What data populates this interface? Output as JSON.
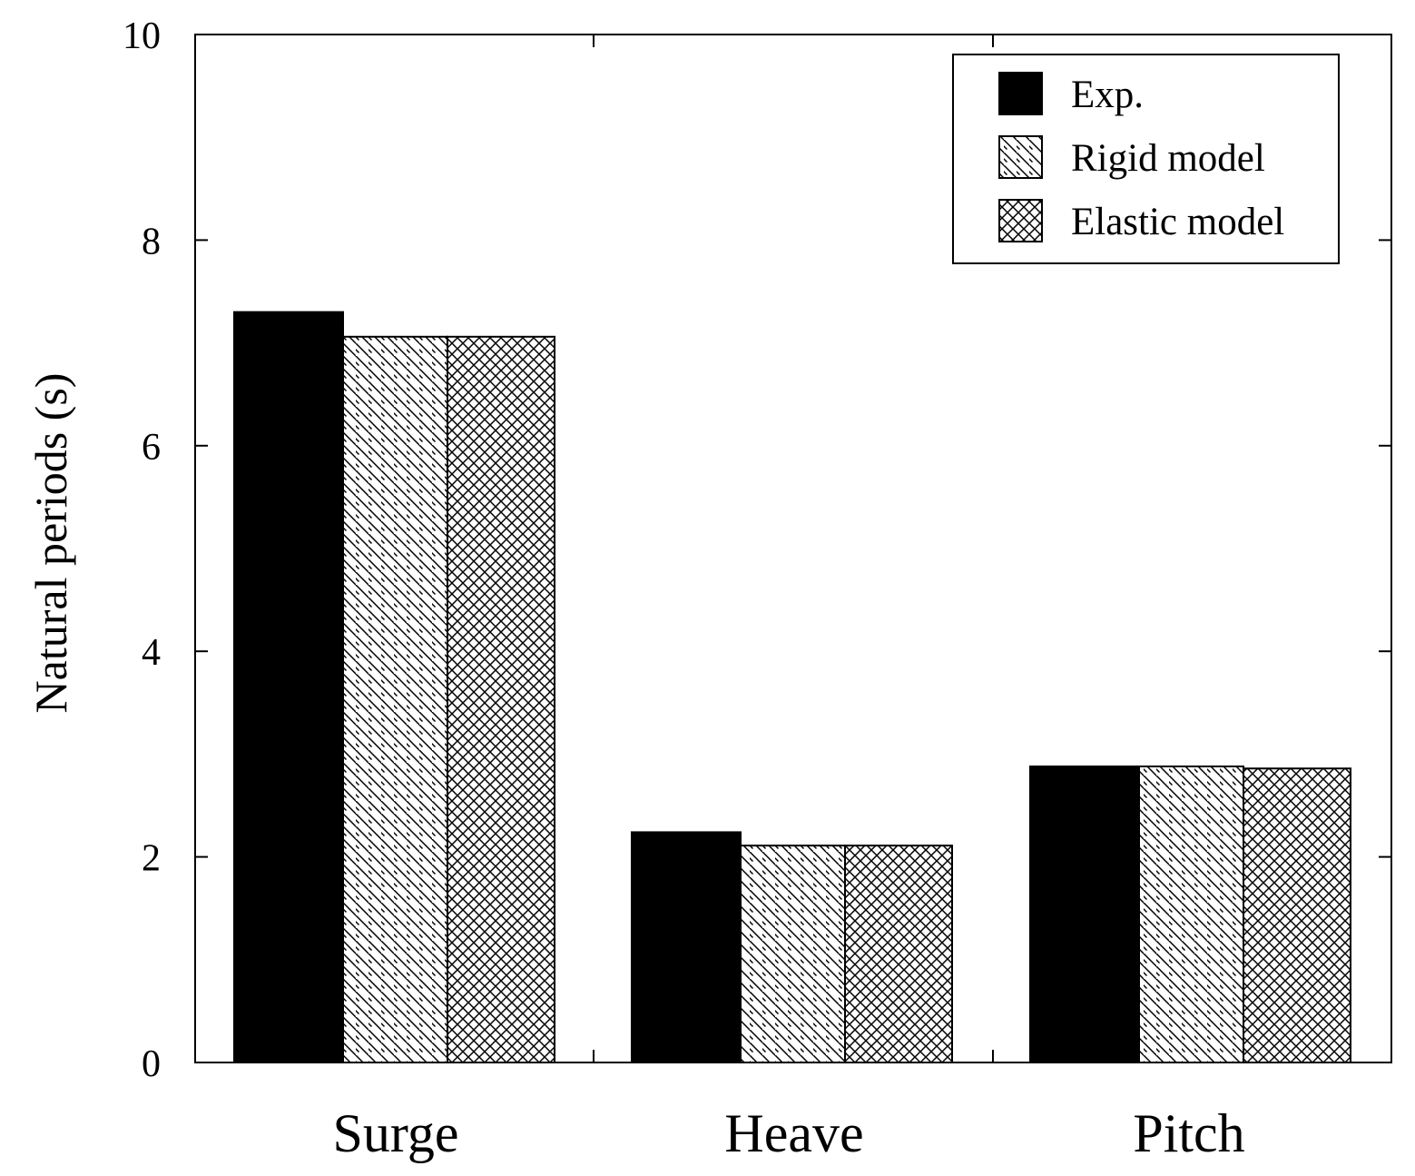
{
  "chart_data": {
    "type": "bar",
    "categories": [
      "Surge",
      "Heave",
      "Pitch"
    ],
    "series": [
      {
        "name": "Exp.",
        "values": [
          7.3,
          2.24,
          2.88
        ],
        "fill": "solid",
        "color": "#000000"
      },
      {
        "name": "Rigid model",
        "values": [
          7.06,
          2.11,
          2.88
        ],
        "fill": "diagonal-hatch",
        "color": "#000000"
      },
      {
        "name": "Elastic model",
        "values": [
          7.06,
          2.11,
          2.86
        ],
        "fill": "cross-hatch",
        "color": "#000000"
      }
    ],
    "title": "",
    "xlabel": "",
    "ylabel": "Natural periods (s)",
    "ylim": [
      0,
      10
    ],
    "yticks": [
      "0",
      "2",
      "4",
      "6",
      "8",
      "10"
    ],
    "grid": false,
    "legend_position": "top-right"
  }
}
